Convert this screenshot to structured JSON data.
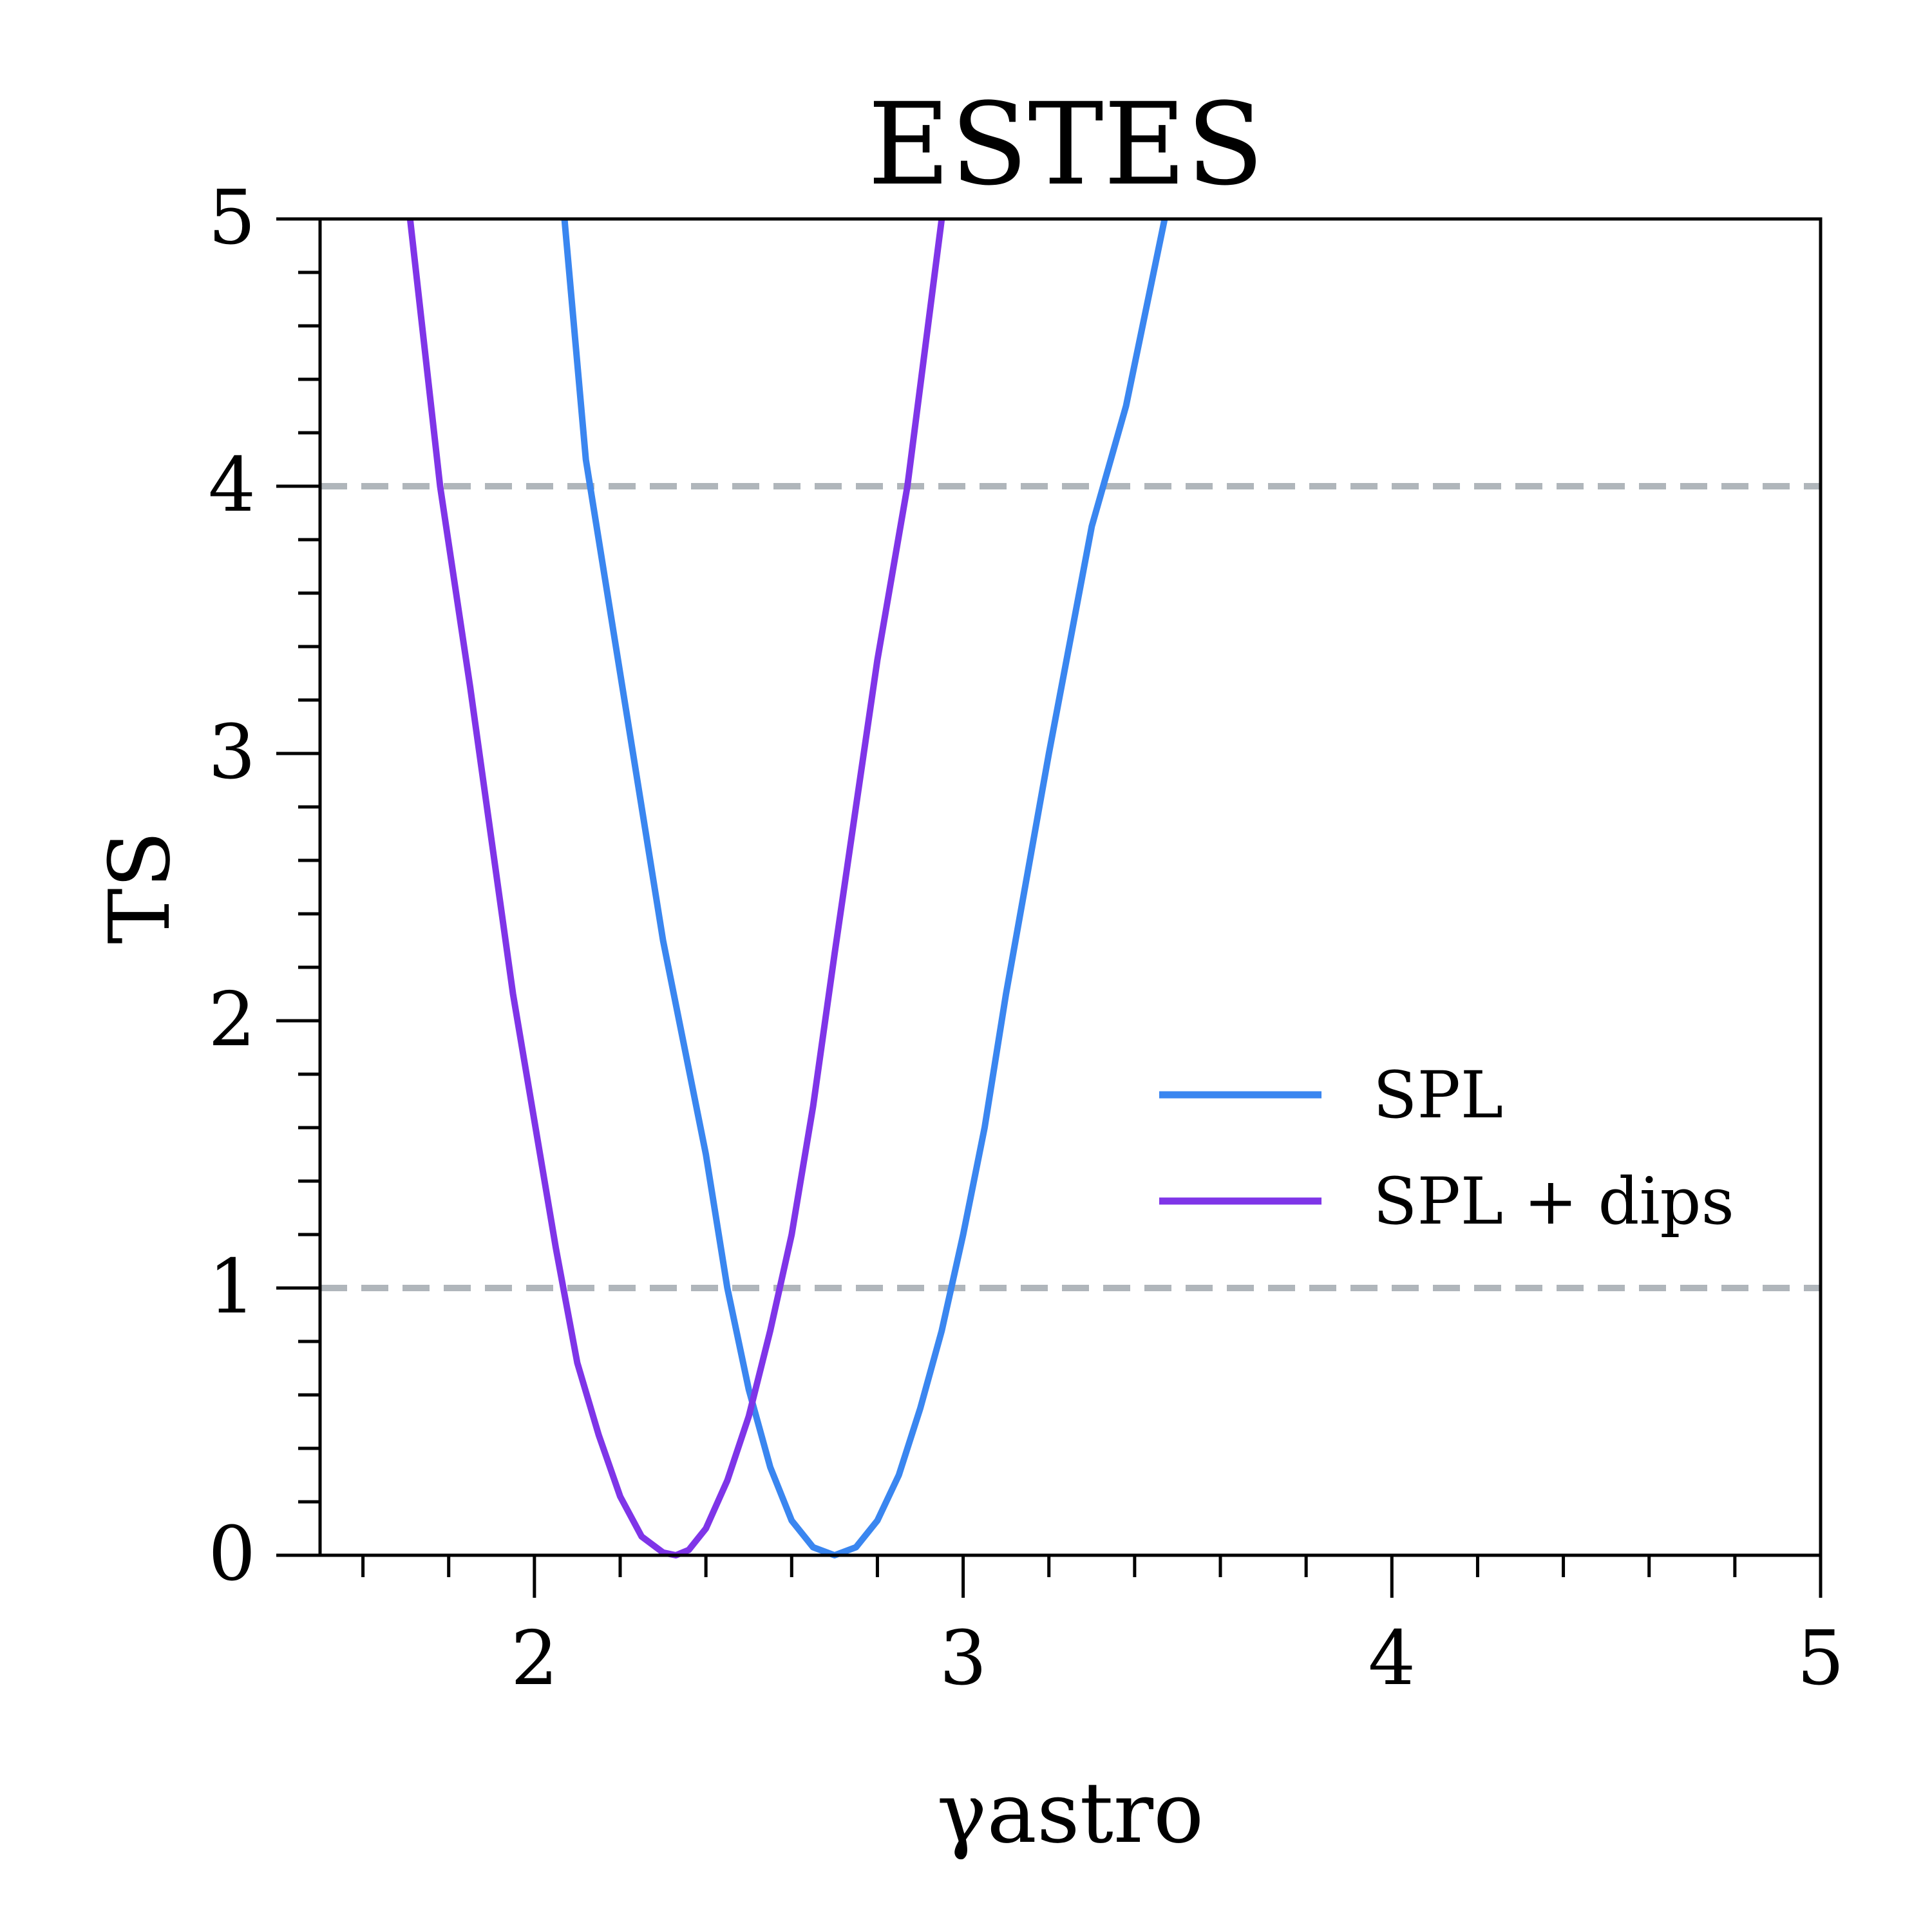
{
  "chart_data": {
    "type": "line",
    "title": "ESTES",
    "xlabel": "γastro",
    "ylabel": "TS",
    "xlim": [
      1.5,
      5
    ],
    "ylim": [
      0,
      5
    ],
    "x_ticks": [
      "2",
      "3",
      "4",
      "5"
    ],
    "y_ticks": [
      "0",
      "1",
      "2",
      "3",
      "4",
      "5"
    ],
    "grid": false,
    "legend_position": "center-right",
    "reference_lines": [
      {
        "y": 1,
        "style": "dashed",
        "color": "#b0b6bb"
      },
      {
        "y": 4,
        "style": "dashed",
        "color": "#b0b6bb"
      }
    ],
    "series": [
      {
        "name": "SPL",
        "color": "#3a86f0",
        "x": [
          2.07,
          2.12,
          2.2,
          2.3,
          2.4,
          2.45,
          2.5,
          2.55,
          2.6,
          2.65,
          2.7,
          2.75,
          2.8,
          2.85,
          2.9,
          2.95,
          3.0,
          3.05,
          3.1,
          3.2,
          3.3,
          3.38,
          3.47
        ],
        "y": [
          5.0,
          4.1,
          3.3,
          2.3,
          1.5,
          1.0,
          0.62,
          0.33,
          0.13,
          0.03,
          0.0,
          0.03,
          0.13,
          0.3,
          0.55,
          0.84,
          1.2,
          1.6,
          2.1,
          3.0,
          3.85,
          4.3,
          5.0
        ]
      },
      {
        "name": "SPL + dips",
        "color": "#7f35e8",
        "x": [
          1.71,
          1.78,
          1.85,
          1.95,
          2.05,
          2.1,
          2.15,
          2.2,
          2.25,
          2.3,
          2.33,
          2.36,
          2.4,
          2.45,
          2.5,
          2.55,
          2.6,
          2.65,
          2.7,
          2.75,
          2.8,
          2.87,
          2.95
        ],
        "y": [
          5.0,
          4.0,
          3.25,
          2.1,
          1.15,
          0.72,
          0.45,
          0.22,
          0.07,
          0.01,
          0.0,
          0.02,
          0.1,
          0.28,
          0.52,
          0.84,
          1.2,
          1.68,
          2.25,
          2.8,
          3.35,
          4.0,
          5.0
        ]
      }
    ]
  }
}
